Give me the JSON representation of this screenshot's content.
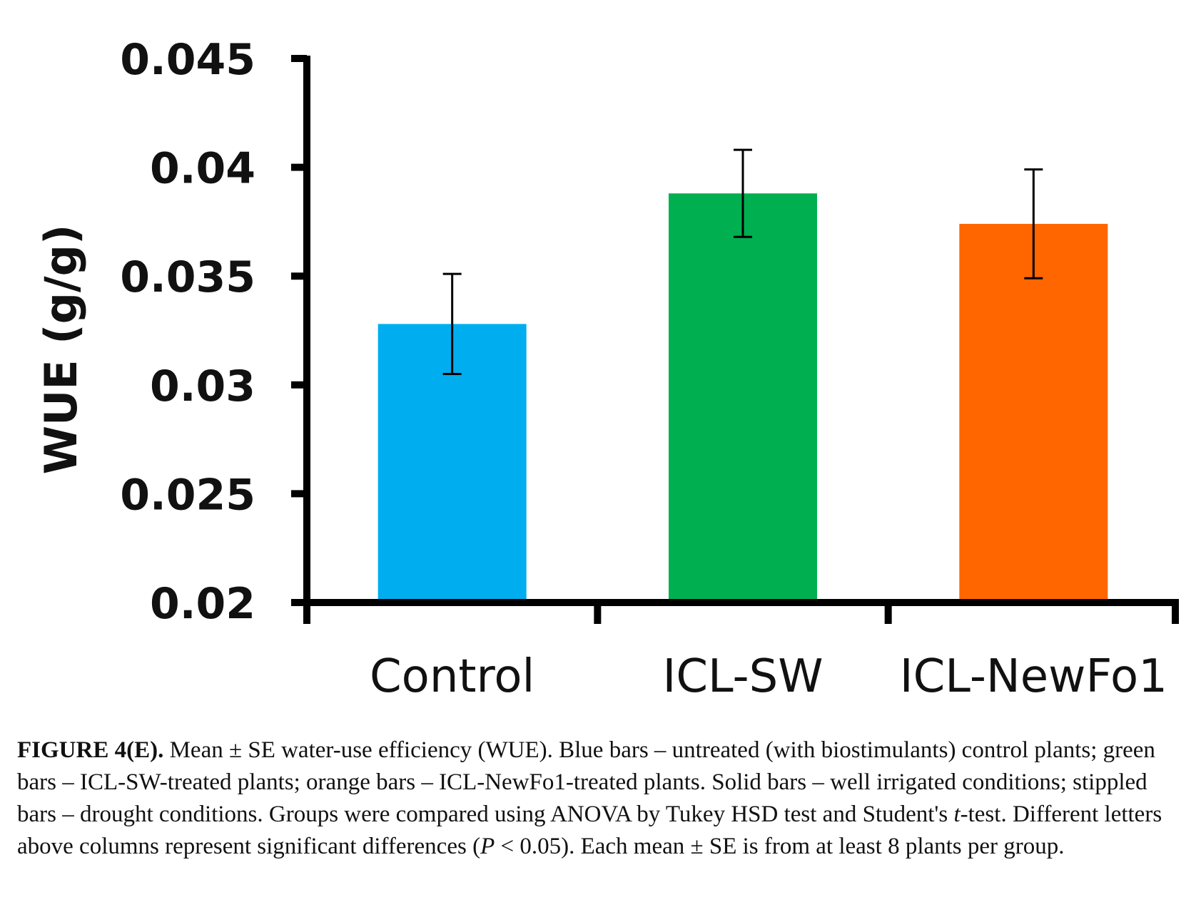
{
  "chart_data": {
    "type": "bar",
    "title": "",
    "xlabel": "",
    "ylabel": "WUE (g/g)",
    "ylim": [
      0.02,
      0.045
    ],
    "yticks": [
      "0.02",
      "0.025",
      "0.03",
      "0.035",
      "0.04",
      "0.045"
    ],
    "categories": [
      "Control",
      "ICL-SW",
      "ICL-NewFo1"
    ],
    "values": [
      0.0328,
      0.0388,
      0.0374
    ],
    "errors": [
      0.0023,
      0.002,
      0.0025
    ],
    "colors": [
      "#00AEEF",
      "#00B050",
      "#FF6600"
    ],
    "grid": false,
    "legend": "none"
  },
  "caption": {
    "label": "FIGURE 4(E).",
    "part1": " Mean ± SE water-use efficiency (WUE). Blue bars – untreated (with biostimulants) control plants; green bars – ICL-SW-treated plants; orange bars – ICL-NewFo1-treated plants. Solid bars – well irrigated conditions; stippled bars – drought conditions. Groups were compared using ANOVA by Tukey HSD test and Student's ",
    "t_italic": "t",
    "part2": "-test. Different letters above columns represent significant differences (",
    "p_italic": "P",
    "part3": " < 0.05). Each mean ± SE is from at least 8 plants per group."
  }
}
